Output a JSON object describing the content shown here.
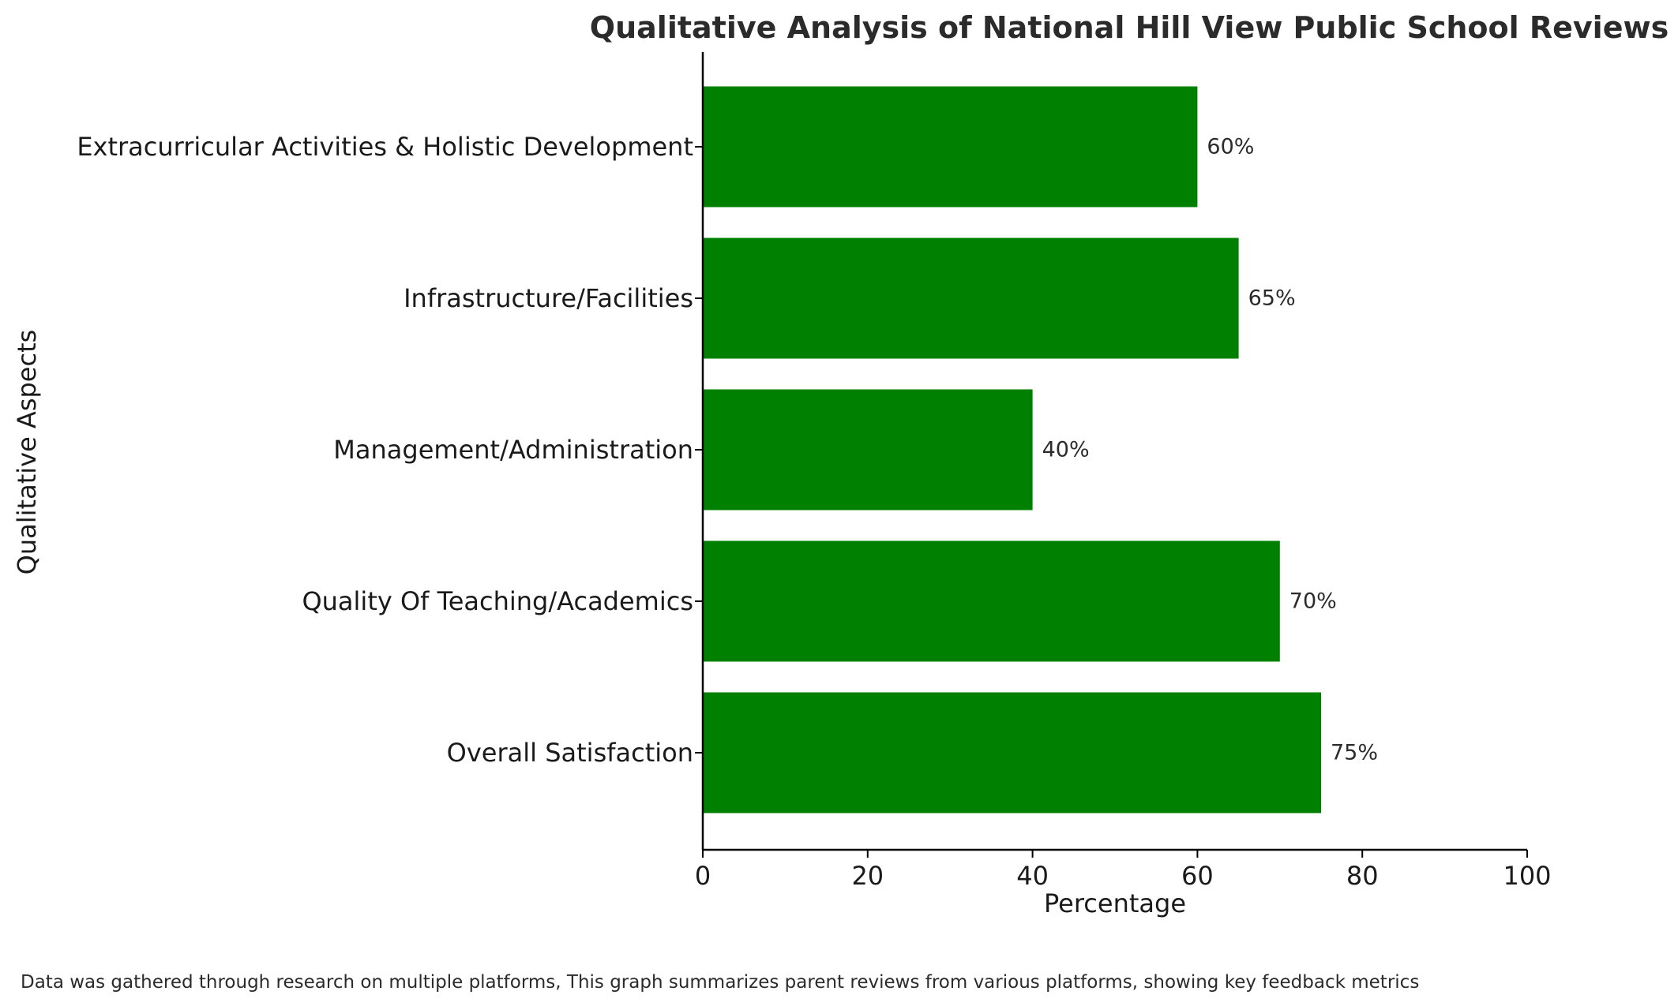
{
  "chart_data": {
    "type": "bar",
    "orientation": "horizontal",
    "title": "Qualitative Analysis of National Hill View Public School Reviews",
    "xlabel": "Percentage",
    "ylabel": "Qualitative Aspects",
    "categories": [
      "Overall Satisfaction",
      "Quality Of Teaching/Academics",
      "Management/Administration",
      "Infrastructure/Facilities",
      "Extracurricular Activities & Holistic Development"
    ],
    "values": [
      75,
      70,
      40,
      65,
      60
    ],
    "data_labels": [
      "75%",
      "70%",
      "40%",
      "65%",
      "60%"
    ],
    "xlim": [
      0,
      100
    ],
    "xticks": [
      0,
      20,
      40,
      60,
      80,
      100
    ],
    "xtick_labels": [
      "0",
      "20",
      "40",
      "60",
      "80",
      "100"
    ],
    "bar_color": "#008000",
    "grid": false,
    "legend": "none",
    "footnote": "Data was gathered through research on multiple platforms, This graph summarizes parent reviews from various platforms, showing key feedback metrics"
  }
}
